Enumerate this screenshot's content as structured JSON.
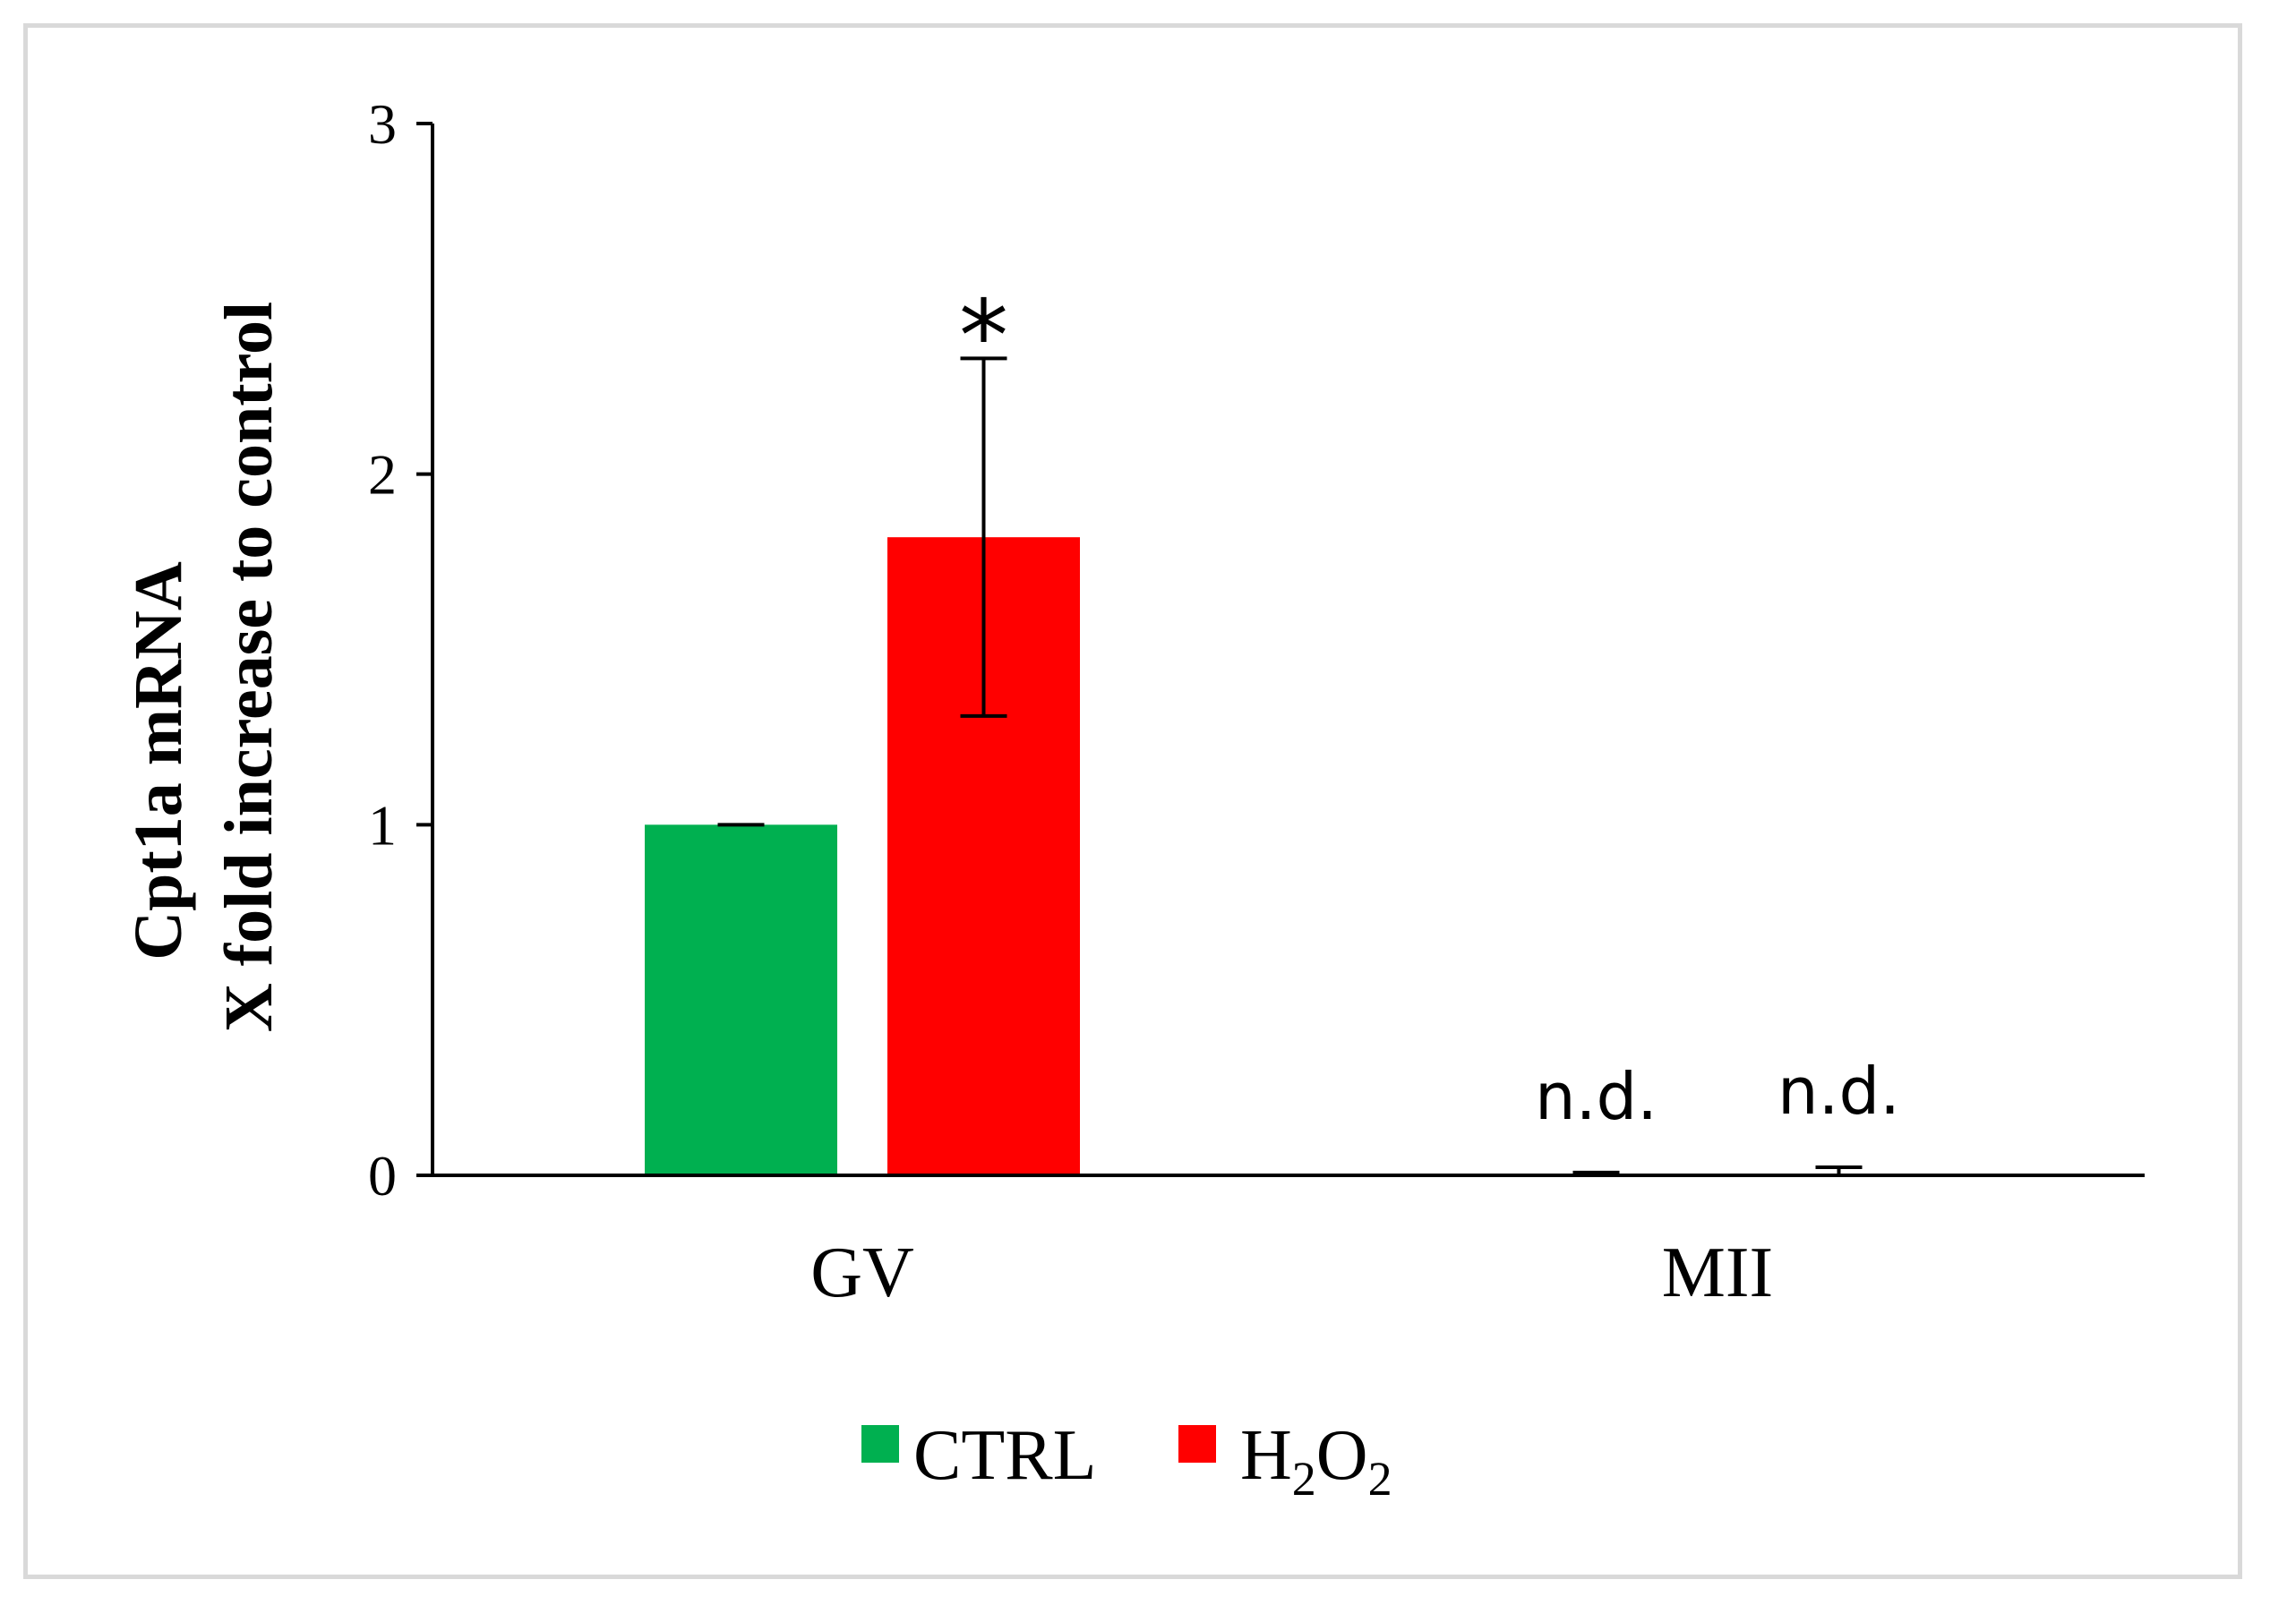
{
  "chart_data": {
    "type": "bar",
    "categories": [
      "GV",
      "MII"
    ],
    "series": [
      {
        "name": "CTRL",
        "name_sub": "",
        "name_tail": "",
        "color": "#00b050",
        "values": [
          1.0,
          0.003
        ],
        "errors": [
          0.0,
          0.005
        ],
        "annotations": [
          "",
          "n.d."
        ]
      },
      {
        "name": "H",
        "name_sub": "2",
        "name_tail": "O",
        "name_sub2": "2",
        "color": "#ff0000",
        "values": [
          1.82,
          0.003
        ],
        "errors": [
          0.51,
          0.02
        ],
        "annotations": [
          "*",
          "n.d."
        ]
      }
    ],
    "ylabel_line1": "Cpt1a mRNA",
    "ylabel_line2": "X fold increase to control",
    "xlabel": "",
    "ylim": [
      0,
      3
    ],
    "yticks": [
      "0",
      "1",
      "2",
      "3"
    ],
    "legend_position": "bottom-center",
    "grid": false
  }
}
